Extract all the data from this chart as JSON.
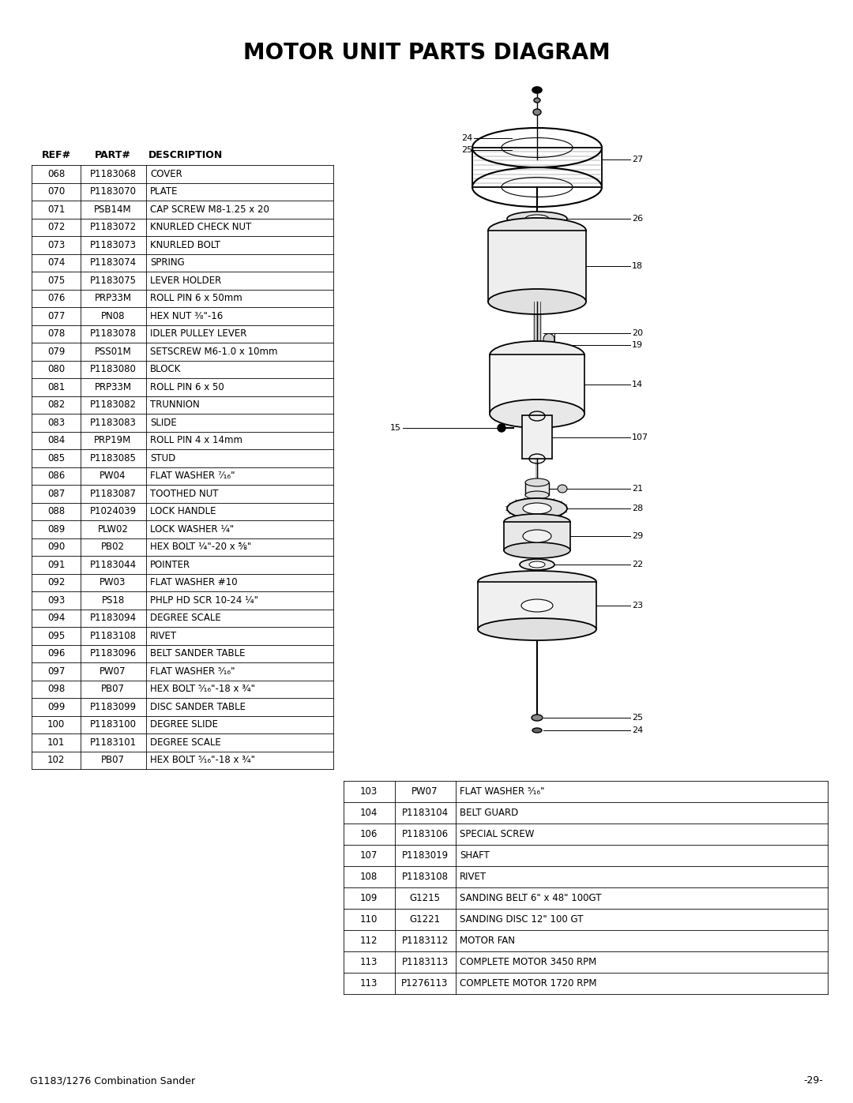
{
  "title": "MOTOR UNIT PARTS DIAGRAM",
  "title_fontsize": 20,
  "background_color": "#ffffff",
  "footer_left": "G1183/1276 Combination Sander",
  "footer_right": "-29-",
  "table1_headers": [
    "REF#",
    "PART#",
    "DESCRIPTION"
  ],
  "table1_rows": [
    [
      "068",
      "P1183068",
      "COVER"
    ],
    [
      "070",
      "P1183070",
      "PLATE"
    ],
    [
      "071",
      "PSB14M",
      "CAP SCREW M8-1.25 x 20"
    ],
    [
      "072",
      "P1183072",
      "KNURLED CHECK NUT"
    ],
    [
      "073",
      "P1183073",
      "KNURLED BOLT"
    ],
    [
      "074",
      "P1183074",
      "SPRING"
    ],
    [
      "075",
      "P1183075",
      "LEVER HOLDER"
    ],
    [
      "076",
      "PRP33M",
      "ROLL PIN 6 x 50mm"
    ],
    [
      "077",
      "PN08",
      "HEX NUT ³⁄₈\"-16"
    ],
    [
      "078",
      "P1183078",
      "IDLER PULLEY LEVER"
    ],
    [
      "079",
      "PSS01M",
      "SETSCREW M6-1.0 x 10mm"
    ],
    [
      "080",
      "P1183080",
      "BLOCK"
    ],
    [
      "081",
      "PRP33M",
      "ROLL PIN 6 x 50"
    ],
    [
      "082",
      "P1183082",
      "TRUNNION"
    ],
    [
      "083",
      "P1183083",
      "SLIDE"
    ],
    [
      "084",
      "PRP19M",
      "ROLL PIN 4 x 14mm"
    ],
    [
      "085",
      "P1183085",
      "STUD"
    ],
    [
      "086",
      "PW04",
      "FLAT WASHER ⁷⁄₁₆\""
    ],
    [
      "087",
      "P1183087",
      "TOOTHED NUT"
    ],
    [
      "088",
      "P1024039",
      "LOCK HANDLE"
    ],
    [
      "089",
      "PLW02",
      "LOCK WASHER ¼\""
    ],
    [
      "090",
      "PB02",
      "HEX BOLT ¼\"-20 x ⅝\""
    ],
    [
      "091",
      "P1183044",
      "POINTER"
    ],
    [
      "092",
      "PW03",
      "FLAT WASHER #10"
    ],
    [
      "093",
      "PS18",
      "PHLP HD SCR 10-24 ¼\""
    ],
    [
      "094",
      "P1183094",
      "DEGREE SCALE"
    ],
    [
      "095",
      "P1183108",
      "RIVET"
    ],
    [
      "096",
      "P1183096",
      "BELT SANDER TABLE"
    ],
    [
      "097",
      "PW07",
      "FLAT WASHER ⁵⁄₁₆\""
    ],
    [
      "098",
      "PB07",
      "HEX BOLT ⁵⁄₁₆\"-18 x ¾\""
    ],
    [
      "099",
      "P1183099",
      "DISC SANDER TABLE"
    ],
    [
      "100",
      "P1183100",
      "DEGREE SLIDE"
    ],
    [
      "101",
      "P1183101",
      "DEGREE SCALE"
    ],
    [
      "102",
      "PB07",
      "HEX BOLT ⁵⁄₁₆\"-18 x ¾\""
    ]
  ],
  "table2_rows": [
    [
      "103",
      "PW07",
      "FLAT WASHER ⁵⁄₁₆\""
    ],
    [
      "104",
      "P1183104",
      "BELT GUARD"
    ],
    [
      "106",
      "P1183106",
      "SPECIAL SCREW"
    ],
    [
      "107",
      "P1183019",
      "SHAFT"
    ],
    [
      "108",
      "P1183108",
      "RIVET"
    ],
    [
      "109",
      "G1215",
      "SANDING BELT 6\" x 48\" 100GT"
    ],
    [
      "110",
      "G1221",
      "SANDING DISC 12\" 100 GT"
    ],
    [
      "112",
      "P1183112",
      "MOTOR FAN"
    ],
    [
      "113",
      "P1183113",
      "COMPLETE MOTOR 3450 RPM"
    ],
    [
      "113",
      "P1276113",
      "COMPLETE MOTOR 1720 RPM"
    ]
  ]
}
